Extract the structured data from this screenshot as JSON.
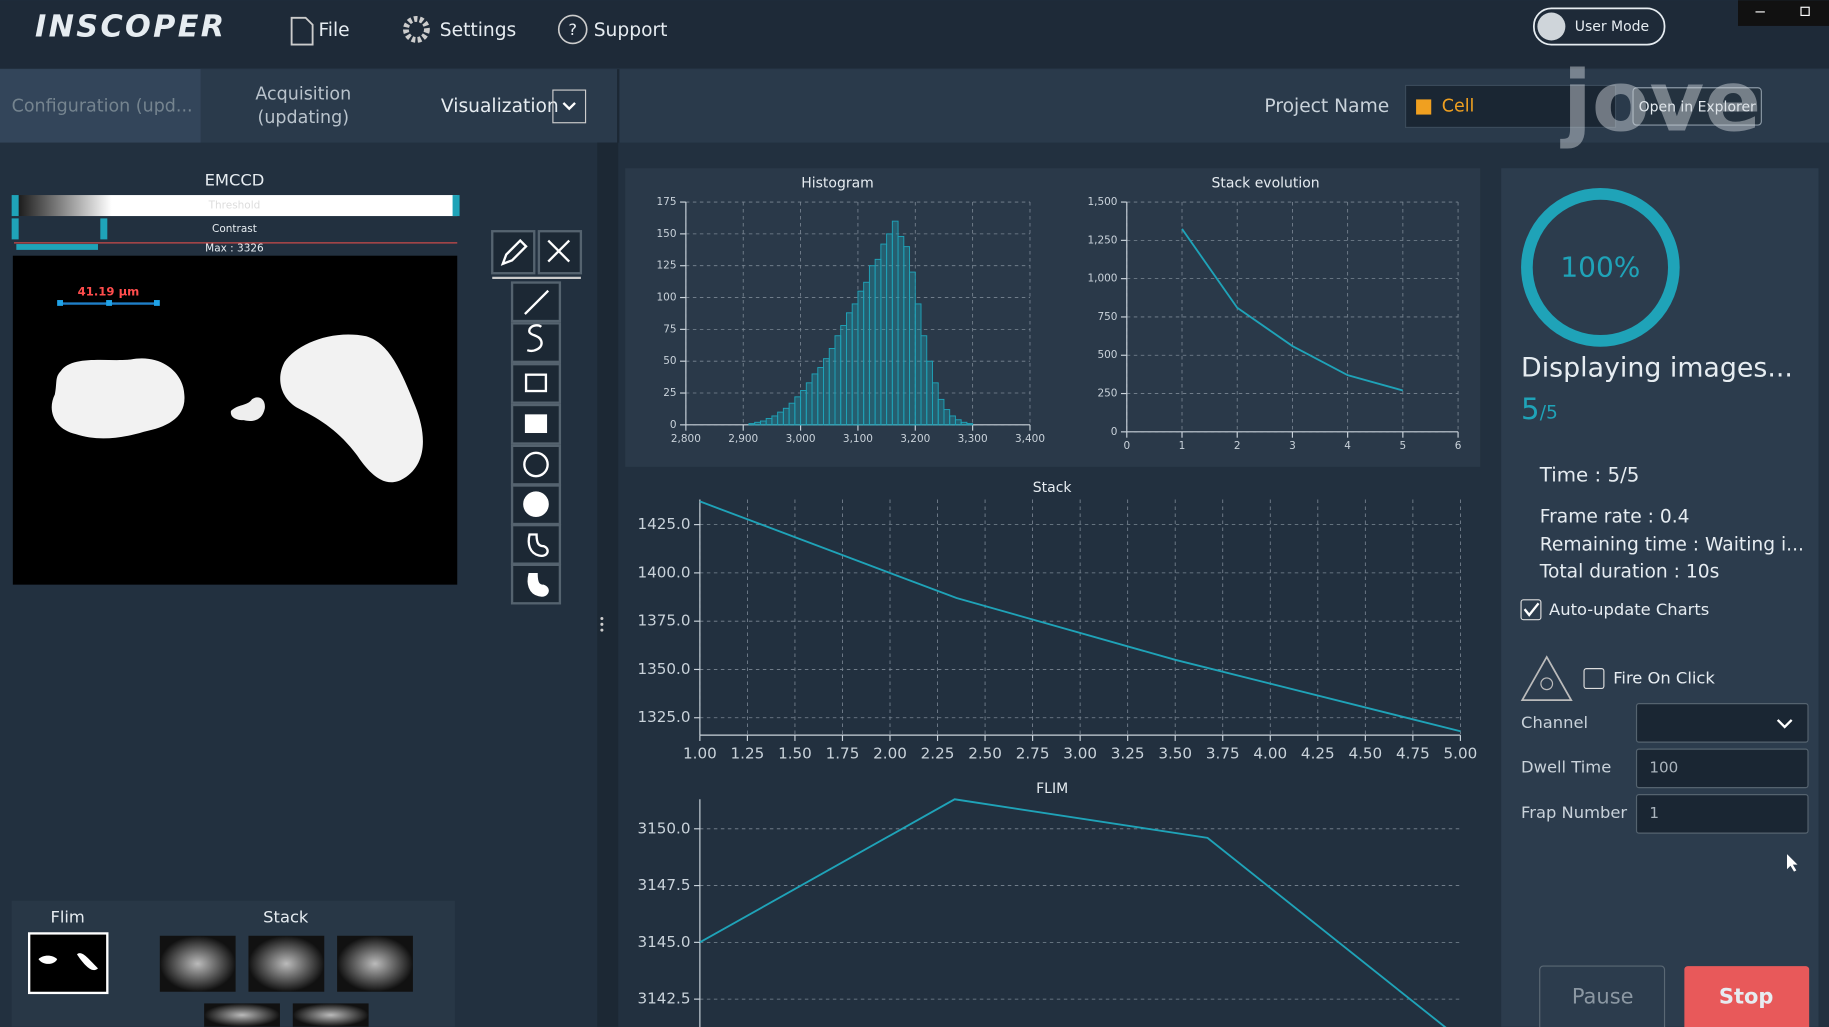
{
  "header": {
    "logo": "INSCOPER",
    "menu": [
      "File",
      "Settings",
      "Support"
    ],
    "user_mode": "User Mode"
  },
  "tabs": [
    "Configuration (upd...",
    [
      "Acquisition",
      "(updating)"
    ],
    "Visualization"
  ],
  "project": {
    "label": "Project Name",
    "value": "Cell",
    "open_button": "Open in Explorer"
  },
  "watermark": "jove",
  "image_panel": {
    "title": "EMCCD",
    "threshold": "Threshold",
    "contrast": "Contrast",
    "max": "Max : 3326",
    "measure": "41.19 µm"
  },
  "thumbnails": {
    "flim": "Flim",
    "stack": "Stack"
  },
  "chart_data": [
    {
      "type": "histogram",
      "title": "Histogram",
      "color": "#1fa3b8",
      "grid": true,
      "bins": [
        2900,
        2910,
        2920,
        2930,
        2940,
        2950,
        2960,
        2970,
        2980,
        2990,
        3000,
        3010,
        3020,
        3030,
        3040,
        3050,
        3060,
        3070,
        3080,
        3090,
        3100,
        3110,
        3120,
        3130,
        3140,
        3150,
        3160,
        3170,
        3180,
        3190,
        3200,
        3210,
        3220,
        3230,
        3240,
        3250,
        3260,
        3270,
        3280,
        3290,
        3300,
        3310,
        3320
      ],
      "values": [
        0,
        1,
        2,
        3,
        5,
        7,
        10,
        13,
        17,
        22,
        27,
        33,
        40,
        45,
        52,
        60,
        70,
        78,
        88,
        95,
        105,
        112,
        125,
        130,
        142,
        150,
        160,
        148,
        140,
        120,
        95,
        70,
        50,
        33,
        20,
        12,
        7,
        4,
        2,
        1,
        0,
        0
      ],
      "xlim": [
        2800,
        3400
      ],
      "ylim": [
        0,
        175
      ],
      "xticks": [
        {
          "value": 2800,
          "label": "2,800"
        },
        {
          "value": 2900,
          "label": "2,900"
        },
        {
          "value": 3000,
          "label": "3,000"
        },
        {
          "value": 3100,
          "label": "3,100"
        },
        {
          "value": 3200,
          "label": "3,200"
        },
        {
          "value": 3300,
          "label": "3,300"
        },
        {
          "value": 3400,
          "label": "3,400"
        }
      ],
      "yticks": [
        0,
        25,
        50,
        75,
        100,
        125,
        150,
        175
      ]
    },
    {
      "type": "line",
      "title": "Stack evolution",
      "color": "#1fa3b8",
      "grid": true,
      "x": [
        1,
        2,
        3,
        4,
        5
      ],
      "values": [
        1325,
        810,
        560,
        370,
        270
      ],
      "xlim": [
        0,
        6
      ],
      "ylim": [
        0,
        1500
      ],
      "xticks": [
        0,
        1,
        2,
        3,
        4,
        5,
        6
      ],
      "yticks": [
        0,
        250,
        500,
        750,
        {
          "value": 1000,
          "label": "1,000"
        },
        {
          "value": 1250,
          "label": "1,250"
        },
        {
          "value": 1500,
          "label": "1,500"
        }
      ]
    },
    {
      "type": "line",
      "title": "Stack",
      "color": "#1fa3b8",
      "grid": true,
      "x": [
        1,
        2.35,
        3.5,
        5
      ],
      "values": [
        1437,
        1387,
        1355,
        1318
      ],
      "xlim": [
        1,
        5
      ],
      "ylim": [
        1316,
        1438
      ],
      "xticks": [
        {
          "value": 1,
          "label": "1.00"
        },
        {
          "value": 1.25,
          "label": "1.25"
        },
        {
          "value": 1.5,
          "label": "1.50"
        },
        {
          "value": 1.75,
          "label": "1.75"
        },
        {
          "value": 2,
          "label": "2.00"
        },
        {
          "value": 2.25,
          "label": "2.25"
        },
        {
          "value": 2.5,
          "label": "2.50"
        },
        {
          "value": 2.75,
          "label": "2.75"
        },
        {
          "value": 3,
          "label": "3.00"
        },
        {
          "value": 3.25,
          "label": "3.25"
        },
        {
          "value": 3.5,
          "label": "3.50"
        },
        {
          "value": 3.75,
          "label": "3.75"
        },
        {
          "value": 4,
          "label": "4.00"
        },
        {
          "value": 4.25,
          "label": "4.25"
        },
        {
          "value": 4.5,
          "label": "4.50"
        },
        {
          "value": 4.75,
          "label": "4.75"
        },
        {
          "value": 5,
          "label": "5.00"
        }
      ],
      "yticks": [
        {
          "value": 1325,
          "label": "1325.0"
        },
        {
          "value": 1350,
          "label": "1350.0"
        },
        {
          "value": 1375,
          "label": "1375.0"
        },
        {
          "value": 1400,
          "label": "1400.0"
        },
        {
          "value": 1425,
          "label": "1425.0"
        }
      ]
    },
    {
      "type": "line",
      "title": "FLIM",
      "color": "#1fa3b8",
      "grid": true,
      "x": [
        1,
        2.34,
        3.67,
        4.96
      ],
      "values": [
        3145.0,
        3151.3,
        3149.6,
        3141.0
      ],
      "xlim": [
        1,
        5
      ],
      "ylim": [
        3140,
        3151.3
      ],
      "yticks": [
        {
          "value": 3142.5,
          "label": "3142.5"
        },
        {
          "value": 3145,
          "label": "3145.0"
        },
        {
          "value": 3147.5,
          "label": "3147.5"
        },
        {
          "value": 3150,
          "label": "3150.0"
        }
      ]
    }
  ],
  "status": {
    "progress_label": "100%",
    "message": "Displaying images...",
    "count": "5",
    "total": "/5",
    "time": "Time : 5/5",
    "frame_rate": "Frame rate : 0.4",
    "remaining": "Remaining time : Waiting i...",
    "duration": "Total duration : 10s",
    "auto_update": "Auto-update Charts",
    "fire_on_click": "Fire On Click",
    "channel": "Channel",
    "dwell_time": "Dwell Time",
    "dwell_value": "100",
    "frap_number": "Frap Number",
    "frap_value": "1",
    "pause": "Pause",
    "stop": "Stop"
  }
}
